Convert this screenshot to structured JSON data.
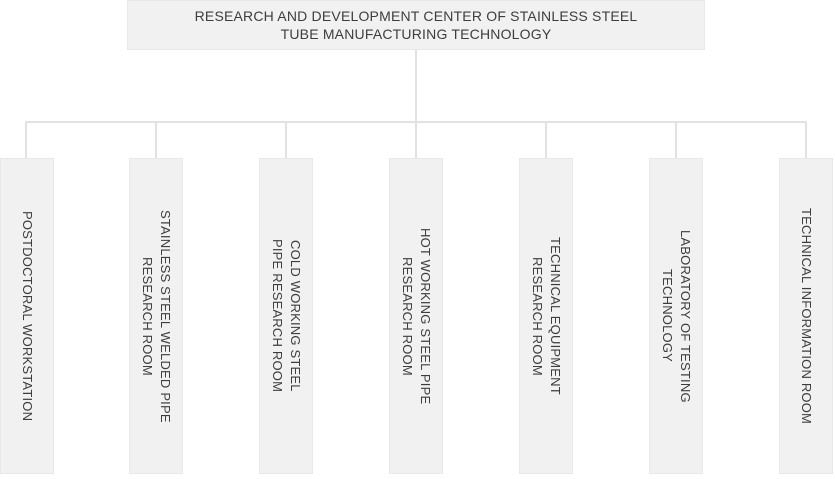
{
  "org_chart": {
    "root": {
      "label": "RESEARCH AND DEVELOPMENT CENTER OF STAINLESS STEEL\nTUBE MANUFACTURING TECHNOLOGY"
    },
    "departments": [
      {
        "label": "POSTDOCTORAL WORKSTATION"
      },
      {
        "label": "STAINLESS STEEL WELDED PIPE\nRESEARCH ROOM"
      },
      {
        "label": "COLD WORKING STEEL\nPIPE RESEARCH ROOM"
      },
      {
        "label": "HOT WORKING STEEL PIPE\nRESEARCH ROOM"
      },
      {
        "label": "TECHNICAL EQUIPMENT\nRESEARCH ROOM"
      },
      {
        "label": "LABORATORY OF TESTING\nTECHNOLOGY"
      },
      {
        "label": "TECHNICAL INFORMATION ROOM"
      }
    ]
  },
  "colors": {
    "box_fill": "#f1f1f1",
    "box_border": "#e8e8e8",
    "connector": "#e2e2e2",
    "text": "#3d3d3d",
    "background": "#ffffff"
  }
}
